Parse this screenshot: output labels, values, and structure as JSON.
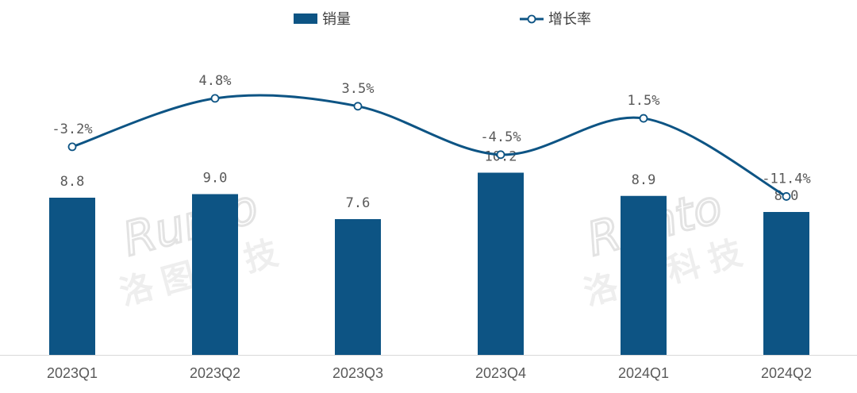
{
  "chart_data": {
    "type": "bar+line",
    "categories": [
      "2023Q1",
      "2023Q2",
      "2023Q3",
      "2023Q4",
      "2024Q1",
      "2024Q2"
    ],
    "series": [
      {
        "name": "销量",
        "type": "bar",
        "axis": "left",
        "values": [
          8.8,
          9.0,
          7.6,
          10.2,
          8.9,
          8.0
        ],
        "labels": [
          "8.8",
          "9.0",
          "7.6",
          "10.2",
          "8.9",
          "8.0"
        ],
        "color": "#0d5484"
      },
      {
        "name": "增长率",
        "type": "line",
        "axis": "right",
        "values": [
          -3.2,
          4.8,
          3.5,
          -4.5,
          1.5,
          -11.4
        ],
        "labels": [
          "-3.2%",
          "4.8%",
          "3.5%",
          "-4.5%",
          "1.5%",
          "-11.4%"
        ],
        "color": "#0d5484"
      }
    ],
    "ylim_bar": [
      0,
      20
    ],
    "ylim_line": [
      -44,
      20
    ],
    "legend_position": "top-center",
    "grid": false,
    "watermark": [
      "Runto",
      "洛图科技"
    ]
  }
}
